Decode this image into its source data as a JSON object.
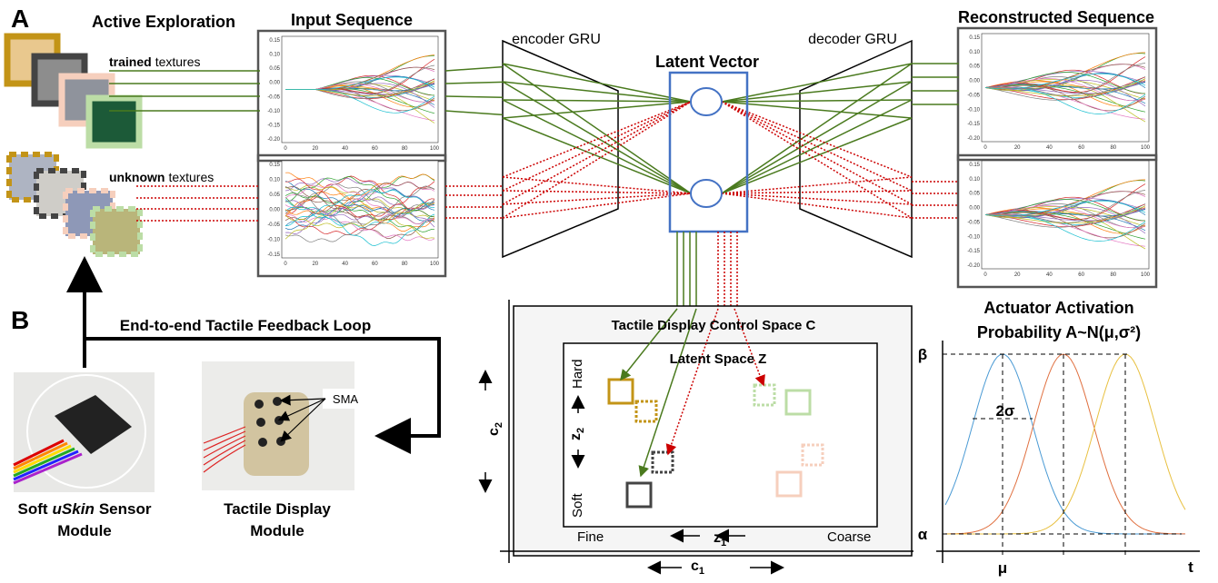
{
  "labels": {
    "a": "A",
    "b": "B"
  },
  "exploration": {
    "title": "Active Exploration",
    "trained": [
      "trained",
      "textures"
    ],
    "unknown": [
      "unknown",
      "textures"
    ]
  },
  "network": {
    "input": "Input Sequence",
    "encoder": "encoder GRU",
    "latent": "Latent Vector",
    "decoder": "decoder GRU",
    "output": "Reconstructed Sequence"
  },
  "plots": [
    {
      "yticks": [
        "0.15",
        "0.10",
        "0.05",
        "0.00",
        "-0.05",
        "-0.10",
        "-0.15",
        "-0.20"
      ],
      "xticks": [
        "0",
        "20",
        "40",
        "60",
        "80",
        "100"
      ]
    },
    {
      "yticks": [
        "0.15",
        "0.10",
        "0.05",
        "0.00",
        "-0.05",
        "-0.10",
        "-0.15"
      ],
      "xticks": [
        "0",
        "20",
        "40",
        "60",
        "80",
        "100"
      ]
    },
    {
      "yticks": [
        "0.15",
        "0.10",
        "0.05",
        "0.00",
        "-0.05",
        "-0.10",
        "-0.15",
        "-0.20"
      ],
      "xticks": [
        "0",
        "20",
        "40",
        "60",
        "80",
        "100"
      ]
    },
    {
      "yticks": [
        "0.15",
        "0.10",
        "0.05",
        "0.00",
        "-0.05",
        "-0.10",
        "-0.15",
        "-0.20"
      ],
      "xticks": [
        "0",
        "20",
        "40",
        "60",
        "80",
        "100"
      ]
    }
  ],
  "loop": {
    "title": "End-to-end Tactile Feedback Loop",
    "sma": "SMA",
    "sensor": [
      "Soft",
      "uSkin",
      "Sensor",
      "Module"
    ],
    "display": [
      "Tactile Display",
      "Module"
    ]
  },
  "space": {
    "control": "Tactile Display Control Space C",
    "latent": "Latent Space Z",
    "hard": "Hard",
    "soft": "Soft",
    "fine": "Fine",
    "coarse": "Coarse",
    "z1": [
      "z",
      "1"
    ],
    "z2": [
      "z",
      "2"
    ],
    "c1": [
      "c",
      "1"
    ],
    "c2": [
      "c",
      "2"
    ]
  },
  "activation": {
    "title": "Actuator Activation",
    "subtitle": "Probability A~N(μ,σ²)",
    "beta": "β",
    "alpha": "α",
    "sigma": "2σ",
    "mu": "μ",
    "t": "t"
  }
}
